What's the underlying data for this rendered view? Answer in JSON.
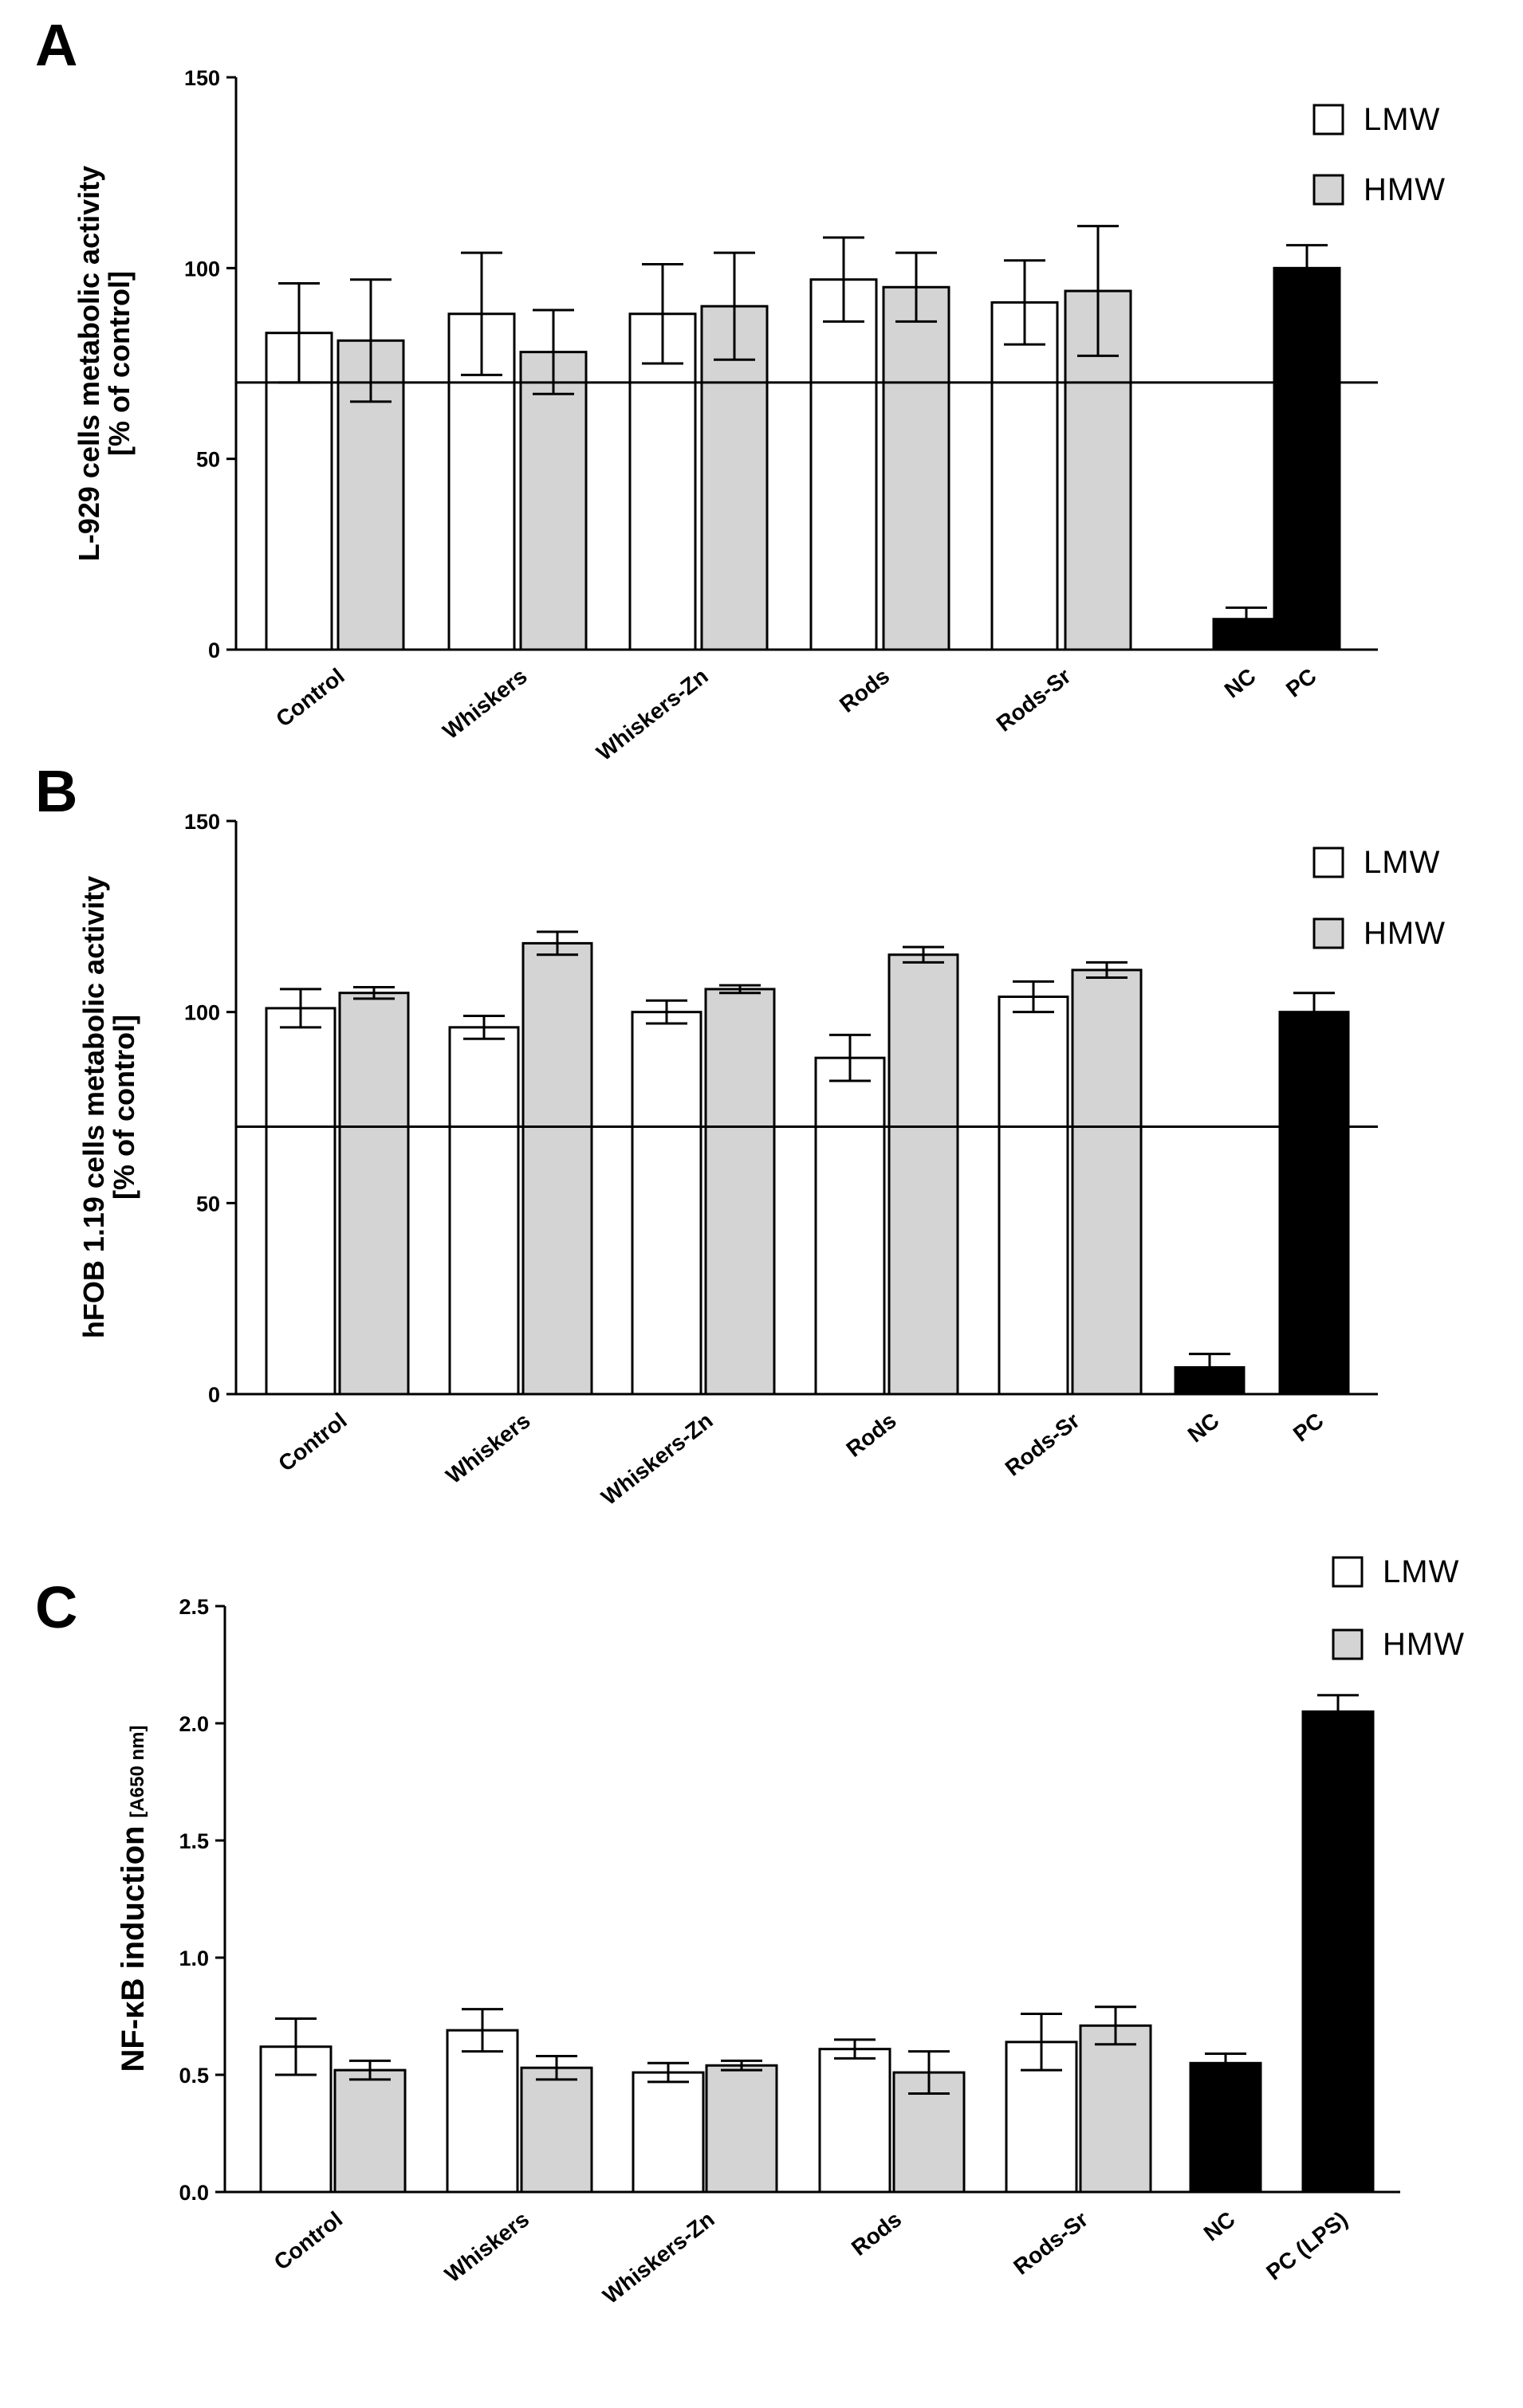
{
  "legend": {
    "lmw": "LMW",
    "hmw": "HMW"
  },
  "colors": {
    "lmw": "#ffffff",
    "hmw": "#d4d4d4",
    "control_bar": "#000000"
  },
  "chart_data": [
    {
      "panel": "A",
      "type": "bar",
      "ylabel_line1": "L-929 cells metabolic activity",
      "ylabel_line2": "[% of control]",
      "ylim": [
        0,
        150
      ],
      "yticks": [
        "0",
        "50",
        "100",
        "150"
      ],
      "reference_line": 70,
      "categories": [
        "Control",
        "Whiskers",
        "Whiskers-Zn",
        "Rods",
        "Rods-Sr",
        "NC",
        "PC"
      ],
      "series": [
        {
          "name": "LMW",
          "values": [
            83,
            88,
            88,
            97,
            91,
            null,
            null
          ],
          "errors": [
            13,
            16,
            13,
            11,
            11,
            null,
            null
          ]
        },
        {
          "name": "HMW",
          "values": [
            81,
            78,
            90,
            95,
            94,
            null,
            null
          ],
          "errors": [
            16,
            11,
            14,
            9,
            17,
            null,
            null
          ]
        }
      ],
      "controls": [
        {
          "category": "NC",
          "value": 8,
          "error": 3
        },
        {
          "category": "PC",
          "value": 100,
          "error": 6
        }
      ]
    },
    {
      "panel": "B",
      "type": "bar",
      "ylabel_line1": "hFOB 1.19 cells metabolic activity",
      "ylabel_line2": "[% of control]",
      "ylim": [
        0,
        150
      ],
      "yticks": [
        "0",
        "50",
        "100",
        "150"
      ],
      "reference_line": 70,
      "categories": [
        "Control",
        "Whiskers",
        "Whiskers-Zn",
        "Rods",
        "Rods-Sr",
        "NC",
        "PC"
      ],
      "series": [
        {
          "name": "LMW",
          "values": [
            101,
            96,
            100,
            88,
            104,
            null,
            null
          ],
          "errors": [
            5,
            3,
            3,
            6,
            4,
            null,
            null
          ]
        },
        {
          "name": "HMW",
          "values": [
            105,
            118,
            106,
            115,
            111,
            null,
            null
          ],
          "errors": [
            1.5,
            3,
            1,
            2,
            2,
            null,
            null
          ]
        }
      ],
      "controls": [
        {
          "category": "NC",
          "value": 7,
          "error": 3.5
        },
        {
          "category": "PC",
          "value": 100,
          "error": 5
        }
      ]
    },
    {
      "panel": "C",
      "type": "bar",
      "ylabel_main": "NF-κB induction",
      "ylabel_units": "[A650 nm]",
      "ylim": [
        0,
        2.5
      ],
      "yticks": [
        "0.0",
        "0.5",
        "1.0",
        "1.5",
        "2.0",
        "2.5"
      ],
      "categories": [
        "Control",
        "Whiskers",
        "Whiskers-Zn",
        "Rods",
        "Rods-Sr",
        "NC",
        "PC (LPS)"
      ],
      "series": [
        {
          "name": "LMW",
          "values": [
            0.62,
            0.69,
            0.51,
            0.61,
            0.64,
            null,
            null
          ],
          "errors": [
            0.12,
            0.09,
            0.04,
            0.04,
            0.12,
            null,
            null
          ]
        },
        {
          "name": "HMW",
          "values": [
            0.52,
            0.53,
            0.54,
            0.51,
            0.71,
            null,
            null
          ],
          "errors": [
            0.04,
            0.05,
            0.02,
            0.09,
            0.08,
            null,
            null
          ]
        }
      ],
      "controls": [
        {
          "category": "NC",
          "value": 0.55,
          "error": 0.04
        },
        {
          "category": "PC (LPS)",
          "value": 2.05,
          "error": 0.07
        }
      ]
    }
  ]
}
